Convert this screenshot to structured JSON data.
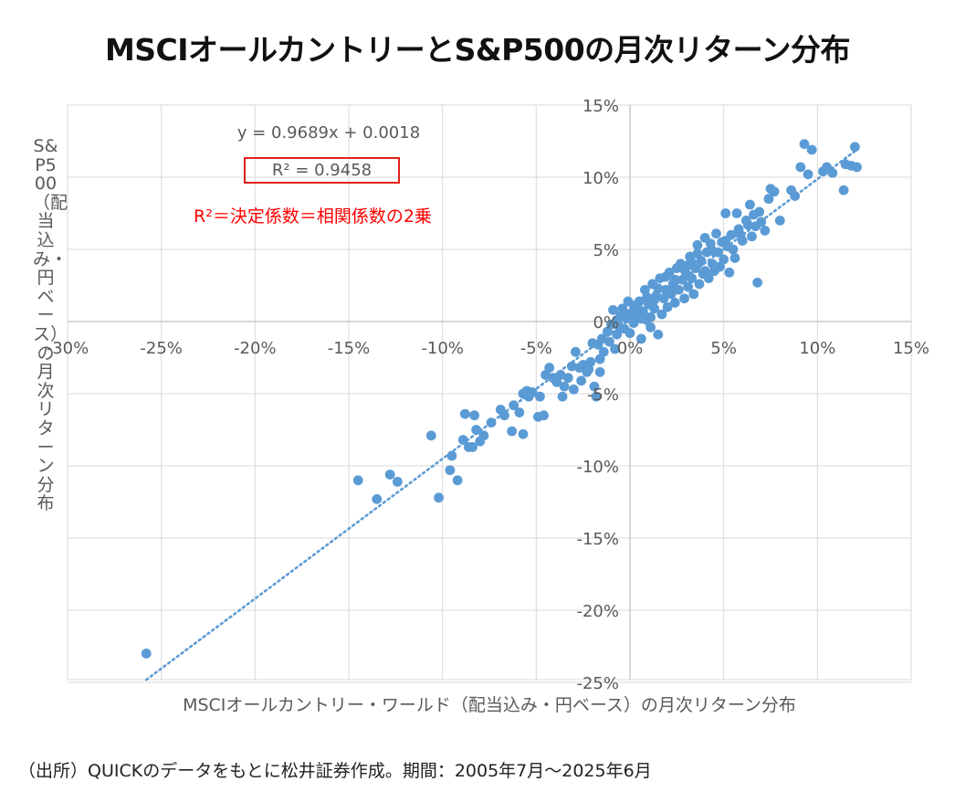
{
  "chart_data": {
    "type": "scatter",
    "title": "MSCIオールカントリーとS&P500の月次リターン分布",
    "xlabel": "MSCIオールカントリー・ワールド（配当込み・円ベース）の月次リターン分布",
    "ylabel": "S&P500（配当込み・円ベース）の月次リターン分布",
    "source": "（出所）QUICKのデータをもとに松井証券作成。期間：2005年7月〜2025年6月",
    "xlim": [
      -30,
      15
    ],
    "ylim": [
      -25,
      15
    ],
    "x_ticks": [
      "-30%",
      "-25%",
      "-20%",
      "-15%",
      "-10%",
      "-5%",
      "0%",
      "5%",
      "10%",
      "15%"
    ],
    "y_ticks": [
      "15%",
      "10%",
      "5%",
      "0%",
      "-5%",
      "-10%",
      "-15%",
      "-20%",
      "-25%"
    ],
    "grid": true,
    "point_color": "#5b9bd5",
    "trendline": {
      "equation": "y = 0.9689x + 0.0018",
      "r_squared": "R² = 0.9458",
      "slope": 0.9689,
      "intercept": 0.18,
      "style": "dotted",
      "x_range": [
        -25.8,
        12.1
      ]
    },
    "annotation": "R²＝決定係数＝相関係数の2乗",
    "annotation_color": "#ff0000",
    "points": [
      [
        -25.8,
        -23.0
      ],
      [
        -14.5,
        -11.0
      ],
      [
        -13.5,
        -12.3
      ],
      [
        -12.8,
        -10.6
      ],
      [
        -12.4,
        -11.1
      ],
      [
        -10.6,
        -7.9
      ],
      [
        -10.2,
        -12.2
      ],
      [
        -9.6,
        -10.3
      ],
      [
        -9.5,
        -9.3
      ],
      [
        -9.2,
        -11.0
      ],
      [
        -8.9,
        -8.2
      ],
      [
        -8.8,
        -6.4
      ],
      [
        -8.6,
        -8.7
      ],
      [
        -8.4,
        -8.7
      ],
      [
        -8.3,
        -6.5
      ],
      [
        -8.2,
        -7.5
      ],
      [
        -8.0,
        -8.3
      ],
      [
        -7.8,
        -7.9
      ],
      [
        -7.4,
        -7.0
      ],
      [
        -6.9,
        -6.1
      ],
      [
        -6.7,
        -6.5
      ],
      [
        -6.3,
        -7.6
      ],
      [
        -6.2,
        -5.8
      ],
      [
        -5.9,
        -6.3
      ],
      [
        -5.7,
        -7.8
      ],
      [
        -5.7,
        -5.0
      ],
      [
        -5.5,
        -4.8
      ],
      [
        -5.4,
        -5.2
      ],
      [
        -5.2,
        -4.9
      ],
      [
        -4.9,
        -6.6
      ],
      [
        -4.8,
        -5.2
      ],
      [
        -4.6,
        -6.5
      ],
      [
        -4.5,
        -3.7
      ],
      [
        -4.3,
        -3.2
      ],
      [
        -4.1,
        -3.9
      ],
      [
        -3.9,
        -4.2
      ],
      [
        -3.7,
        -3.7
      ],
      [
        -3.6,
        -5.2
      ],
      [
        -3.5,
        -4.5
      ],
      [
        -3.3,
        -3.9
      ],
      [
        -3.1,
        -3.1
      ],
      [
        -3.0,
        -4.7
      ],
      [
        -2.9,
        -2.1
      ],
      [
        -2.7,
        -3.2
      ],
      [
        -2.6,
        -4.1
      ],
      [
        -2.5,
        -3.0
      ],
      [
        -2.3,
        -3.5
      ],
      [
        -2.2,
        -3.3
      ],
      [
        -2.1,
        -2.8
      ],
      [
        -2.0,
        -1.5
      ],
      [
        -1.9,
        -4.5
      ],
      [
        -1.8,
        -5.2
      ],
      [
        -1.7,
        -1.6
      ],
      [
        -1.6,
        -3.5
      ],
      [
        -1.6,
        -2.6
      ],
      [
        -1.5,
        -1.2
      ],
      [
        -1.4,
        -2.1
      ],
      [
        -1.2,
        -0.7
      ],
      [
        -1.1,
        -1.4
      ],
      [
        -1.0,
        -0.2
      ],
      [
        -0.9,
        0.8
      ],
      [
        -0.8,
        -1.9
      ],
      [
        -0.7,
        -0.9
      ],
      [
        -0.6,
        -0.3
      ],
      [
        -0.5,
        0.4
      ],
      [
        -0.4,
        0.9
      ],
      [
        -0.3,
        -0.5
      ],
      [
        -0.2,
        0.2
      ],
      [
        -0.1,
        1.4
      ],
      [
        0.0,
        -0.8
      ],
      [
        0.1,
        0.6
      ],
      [
        0.2,
        -0.1
      ],
      [
        0.3,
        0.3
      ],
      [
        0.4,
        1.0
      ],
      [
        0.5,
        1.4
      ],
      [
        0.6,
        -1.2
      ],
      [
        0.7,
        0.7
      ],
      [
        0.8,
        2.2
      ],
      [
        0.9,
        0.1
      ],
      [
        1.0,
        1.2
      ],
      [
        1.1,
        -0.4
      ],
      [
        1.2,
        2.6
      ],
      [
        1.3,
        0.9
      ],
      [
        1.4,
        1.8
      ],
      [
        1.5,
        -0.9
      ],
      [
        1.6,
        3.0
      ],
      [
        1.7,
        0.5
      ],
      [
        1.8,
        1.6
      ],
      [
        1.9,
        2.2
      ],
      [
        2.0,
        1.0
      ],
      [
        2.1,
        3.4
      ],
      [
        2.2,
        1.9
      ],
      [
        2.3,
        2.6
      ],
      [
        2.4,
        1.3
      ],
      [
        2.5,
        3.7
      ],
      [
        2.6,
        2.2
      ],
      [
        2.7,
        4.0
      ],
      [
        2.8,
        2.9
      ],
      [
        2.9,
        1.6
      ],
      [
        3.0,
        3.3
      ],
      [
        3.1,
        2.4
      ],
      [
        3.2,
        4.5
      ],
      [
        3.3,
        3.0
      ],
      [
        3.4,
        1.9
      ],
      [
        3.5,
        3.7
      ],
      [
        3.6,
        5.3
      ],
      [
        3.7,
        2.6
      ],
      [
        3.8,
        4.2
      ],
      [
        3.9,
        3.3
      ],
      [
        4.0,
        5.8
      ],
      [
        4.1,
        4.8
      ],
      [
        4.2,
        3.0
      ],
      [
        4.3,
        5.4
      ],
      [
        4.4,
        4.0
      ],
      [
        4.5,
        3.5
      ],
      [
        4.6,
        6.1
      ],
      [
        4.7,
        4.8
      ],
      [
        4.8,
        3.8
      ],
      [
        4.9,
        5.5
      ],
      [
        5.0,
        4.3
      ],
      [
        5.1,
        7.5
      ],
      [
        5.2,
        5.2
      ],
      [
        5.3,
        3.4
      ],
      [
        5.4,
        6.0
      ],
      [
        5.5,
        5.0
      ],
      [
        5.6,
        4.4
      ],
      [
        5.7,
        7.5
      ],
      [
        5.9,
        6.0
      ],
      [
        6.0,
        5.6
      ],
      [
        6.2,
        7.0
      ],
      [
        6.4,
        8.1
      ],
      [
        6.5,
        5.9
      ],
      [
        6.6,
        7.4
      ],
      [
        6.7,
        6.6
      ],
      [
        6.8,
        2.7
      ],
      [
        6.9,
        7.6
      ],
      [
        7.0,
        6.9
      ],
      [
        7.2,
        6.3
      ],
      [
        7.4,
        8.5
      ],
      [
        7.5,
        9.2
      ],
      [
        7.7,
        9.0
      ],
      [
        8.0,
        7.0
      ],
      [
        8.6,
        9.1
      ],
      [
        8.8,
        8.7
      ],
      [
        9.1,
        10.7
      ],
      [
        9.3,
        12.3
      ],
      [
        9.5,
        10.2
      ],
      [
        9.7,
        11.9
      ],
      [
        10.3,
        10.4
      ],
      [
        10.5,
        10.7
      ],
      [
        10.8,
        10.3
      ],
      [
        11.4,
        9.1
      ],
      [
        11.8,
        10.8
      ],
      [
        12.0,
        12.1
      ],
      [
        12.1,
        10.7
      ],
      [
        11.5,
        10.9
      ],
      [
        2.4,
        2.9
      ],
      [
        3.1,
        3.9
      ],
      [
        1.9,
        3.1
      ],
      [
        0.6,
        0.2
      ],
      [
        -0.3,
        0.6
      ],
      [
        4.4,
        4.9
      ],
      [
        5.8,
        6.4
      ],
      [
        1.3,
        1.5
      ],
      [
        2.9,
        3.6
      ],
      [
        3.6,
        4.7
      ],
      [
        0.2,
        1.1
      ],
      [
        1.1,
        0.3
      ],
      [
        6.3,
        6.7
      ],
      [
        4.0,
        3.5
      ],
      [
        2.2,
        2.0
      ],
      [
        0.9,
        1.7
      ],
      [
        3.3,
        4.1
      ],
      [
        5.1,
        5.6
      ],
      [
        -0.7,
        0.1
      ],
      [
        1.5,
        2.3
      ]
    ]
  }
}
